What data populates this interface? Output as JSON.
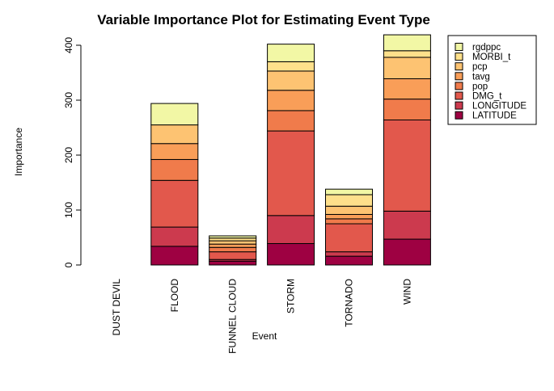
{
  "chart_data": {
    "type": "bar",
    "stacked": true,
    "title": "Variable Importance Plot for Estimating Event Type",
    "xlabel": "Event",
    "ylabel": "Importance",
    "ylim": [
      0,
      410
    ],
    "yticks": [
      0,
      100,
      200,
      300,
      400
    ],
    "grid": false,
    "legend_position": "top-right",
    "categories": [
      "DUST DEVIL",
      "FLOOD",
      "FUNNEL CLOUD",
      "STORM",
      "TORNADO",
      "WIND"
    ],
    "series": [
      {
        "name": "LATITUDE",
        "color": "#9e0142",
        "values": [
          0,
          34,
          7,
          39,
          16,
          47
        ]
      },
      {
        "name": "LONGITUDE",
        "color": "#cc3a4e",
        "values": [
          0,
          35,
          3,
          51,
          8,
          51
        ]
      },
      {
        "name": "DMG_t",
        "color": "#e2584c",
        "values": [
          0,
          85,
          14,
          154,
          51,
          166
        ]
      },
      {
        "name": "pop",
        "color": "#f07b4b",
        "values": [
          0,
          38,
          8,
          37,
          9,
          38
        ]
      },
      {
        "name": "tavg",
        "color": "#f99e58",
        "values": [
          0,
          29,
          6,
          37,
          8,
          37
        ]
      },
      {
        "name": "pcp",
        "color": "#fdc372",
        "values": [
          0,
          34,
          6,
          35,
          15,
          39
        ]
      },
      {
        "name": "MORBI_t",
        "color": "#fee08b",
        "values": [
          0,
          0,
          5,
          17,
          21,
          12
        ]
      },
      {
        "name": "rgdppc",
        "color": "#f2f7a5",
        "values": [
          0,
          39,
          4,
          32,
          10,
          29
        ]
      }
    ]
  }
}
